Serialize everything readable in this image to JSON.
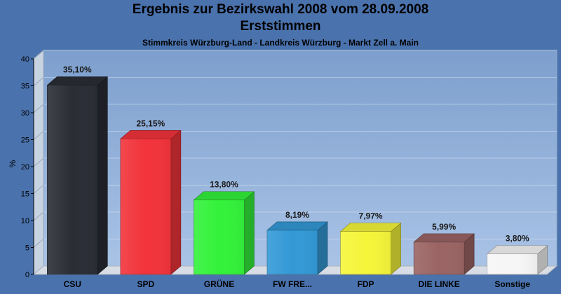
{
  "chart_data": {
    "type": "bar",
    "title": "Ergebnis zur Bezirkswahl 2008 vom 28.09.2008",
    "subtitle": "Erststimmen",
    "caption": "Stimmkreis Würzburg-Land - Landkreis Würzburg - Markt Zell a. Main",
    "ylabel": "%",
    "xlabel": "",
    "ylim": [
      0,
      40
    ],
    "yticks": [
      0,
      5,
      10,
      15,
      20,
      25,
      30,
      35,
      40
    ],
    "grid": true,
    "categories": [
      "CSU",
      "SPD",
      "GRÜNE",
      "FW FRE...",
      "FDP",
      "DIE LINKE",
      "Sonstige"
    ],
    "values": [
      35.1,
      25.15,
      13.8,
      8.19,
      7.97,
      5.99,
      3.8
    ],
    "value_labels": [
      "35,10%",
      "25,15%",
      "13,80%",
      "8,19%",
      "7,97%",
      "5,99%",
      "3,80%"
    ],
    "colors": [
      "#2a2d35",
      "#f2333b",
      "#33f23b",
      "#3399d6",
      "#f5f53a",
      "#9b6464",
      "#f6f6f6"
    ]
  }
}
